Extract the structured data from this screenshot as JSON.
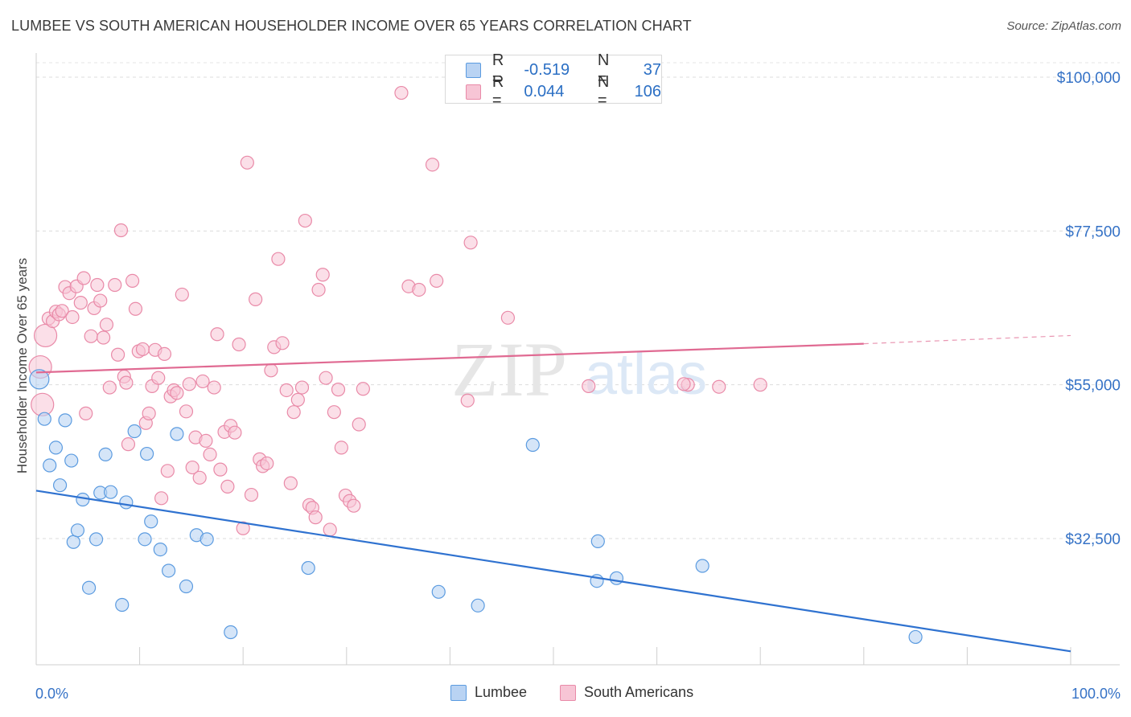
{
  "title": "LUMBEE VS SOUTH AMERICAN HOUSEHOLDER INCOME OVER 65 YEARS CORRELATION CHART",
  "source": "Source: ZipAtlas.com",
  "watermark": {
    "zip": "ZIP",
    "atlas": "atlas"
  },
  "legend_top": [
    {
      "r_label": "R =",
      "r_value": "-0.519",
      "n_label": "N =",
      "n_value": "37"
    },
    {
      "r_label": "R =",
      "r_value": "0.044",
      "n_label": "N =",
      "n_value": "106"
    }
  ],
  "chart_data": {
    "type": "scatter",
    "title": "LUMBEE VS SOUTH AMERICAN HOUSEHOLDER INCOME OVER 65 YEARS CORRELATION CHART",
    "xlabel": "",
    "ylabel": "Householder Income Over 65 years",
    "xlim": [
      0,
      100
    ],
    "ylim": [
      12000,
      102000
    ],
    "x_tick_labels": [
      "0.0%",
      "100.0%"
    ],
    "y_ticks": [
      32500,
      55000,
      77500,
      100000
    ],
    "y_tick_labels": [
      "$32,500",
      "$55,000",
      "$77,500",
      "$100,000"
    ],
    "grid": true,
    "legend": "bottom-center",
    "colors": {
      "lumbee": "#5b9be0",
      "lumbee_fill": "#b9d3f3",
      "lumbee_line": "#2f72d0",
      "south": "#e98aa8",
      "south_fill": "#f7c5d5",
      "south_line": "#e06a92",
      "axis_label": "#3572c6"
    },
    "series": [
      {
        "name": "Lumbee",
        "r": -0.519,
        "n": 37,
        "trend": {
          "x": [
            0,
            100
          ],
          "y": [
            39500,
            16000
          ]
        },
        "points": [
          [
            0.3,
            55800
          ],
          [
            0.8,
            50000
          ],
          [
            1.3,
            43200
          ],
          [
            1.9,
            45800
          ],
          [
            2.3,
            40300
          ],
          [
            2.8,
            49800
          ],
          [
            3.4,
            43900
          ],
          [
            3.6,
            32000
          ],
          [
            4.0,
            33700
          ],
          [
            4.5,
            38200
          ],
          [
            5.1,
            25300
          ],
          [
            5.8,
            32400
          ],
          [
            6.2,
            39200
          ],
          [
            6.7,
            44800
          ],
          [
            7.2,
            39300
          ],
          [
            8.3,
            22800
          ],
          [
            8.7,
            37800
          ],
          [
            9.5,
            48200
          ],
          [
            10.5,
            32400
          ],
          [
            10.7,
            44900
          ],
          [
            11.1,
            35000
          ],
          [
            12.0,
            30900
          ],
          [
            12.8,
            27800
          ],
          [
            13.6,
            47800
          ],
          [
            14.5,
            25500
          ],
          [
            15.5,
            33000
          ],
          [
            16.5,
            32400
          ],
          [
            18.8,
            18800
          ],
          [
            26.3,
            28200
          ],
          [
            38.9,
            24700
          ],
          [
            42.7,
            22700
          ],
          [
            48.0,
            46200
          ],
          [
            54.3,
            32100
          ],
          [
            54.2,
            26300
          ],
          [
            56.1,
            26700
          ],
          [
            64.4,
            28500
          ],
          [
            85.0,
            18100
          ]
        ]
      },
      {
        "name": "South Americans",
        "r": 0.044,
        "n": 106,
        "trend": {
          "x": [
            0,
            80
          ],
          "y": [
            56800,
            61000
          ]
        },
        "trend_dashed": {
          "x": [
            80,
            100
          ],
          "y": [
            61000,
            62200
          ]
        },
        "points": [
          [
            0.4,
            57600
          ],
          [
            0.6,
            52100
          ],
          [
            0.9,
            62200
          ],
          [
            1.2,
            64700
          ],
          [
            1.6,
            64300
          ],
          [
            1.9,
            65700
          ],
          [
            2.2,
            65300
          ],
          [
            2.5,
            65800
          ],
          [
            2.8,
            69300
          ],
          [
            3.2,
            68400
          ],
          [
            3.5,
            64900
          ],
          [
            3.9,
            69400
          ],
          [
            4.3,
            67000
          ],
          [
            4.6,
            70600
          ],
          [
            4.8,
            50800
          ],
          [
            5.3,
            62100
          ],
          [
            5.6,
            66200
          ],
          [
            5.9,
            69600
          ],
          [
            6.2,
            67300
          ],
          [
            6.5,
            61900
          ],
          [
            6.8,
            63800
          ],
          [
            7.1,
            54600
          ],
          [
            7.6,
            69600
          ],
          [
            7.9,
            59400
          ],
          [
            8.2,
            77600
          ],
          [
            8.5,
            56200
          ],
          [
            8.7,
            55300
          ],
          [
            8.9,
            46300
          ],
          [
            9.3,
            70200
          ],
          [
            9.6,
            66100
          ],
          [
            9.9,
            59900
          ],
          [
            10.3,
            60200
          ],
          [
            10.6,
            49400
          ],
          [
            10.9,
            50800
          ],
          [
            11.2,
            54800
          ],
          [
            11.5,
            60100
          ],
          [
            11.8,
            56000
          ],
          [
            12.1,
            38400
          ],
          [
            12.4,
            59500
          ],
          [
            12.7,
            42400
          ],
          [
            13.0,
            53300
          ],
          [
            13.3,
            54200
          ],
          [
            13.6,
            53800
          ],
          [
            14.1,
            68200
          ],
          [
            14.5,
            51100
          ],
          [
            14.8,
            55100
          ],
          [
            15.1,
            42900
          ],
          [
            15.4,
            47300
          ],
          [
            15.8,
            41400
          ],
          [
            16.1,
            55500
          ],
          [
            16.4,
            46800
          ],
          [
            16.8,
            44800
          ],
          [
            17.2,
            54600
          ],
          [
            17.5,
            62400
          ],
          [
            17.8,
            42600
          ],
          [
            18.2,
            48100
          ],
          [
            18.5,
            40100
          ],
          [
            18.8,
            49000
          ],
          [
            19.2,
            48000
          ],
          [
            19.6,
            60900
          ],
          [
            20.0,
            34000
          ],
          [
            20.4,
            87500
          ],
          [
            20.8,
            38900
          ],
          [
            21.2,
            67500
          ],
          [
            21.6,
            44100
          ],
          [
            21.9,
            43100
          ],
          [
            22.3,
            43500
          ],
          [
            22.7,
            57100
          ],
          [
            23.0,
            60500
          ],
          [
            23.4,
            73400
          ],
          [
            23.8,
            61100
          ],
          [
            24.2,
            54200
          ],
          [
            24.6,
            40600
          ],
          [
            24.9,
            51000
          ],
          [
            25.3,
            52800
          ],
          [
            25.7,
            54600
          ],
          [
            26.0,
            79000
          ],
          [
            26.4,
            37400
          ],
          [
            26.7,
            37000
          ],
          [
            27.0,
            35600
          ],
          [
            27.3,
            68900
          ],
          [
            27.7,
            71100
          ],
          [
            28.0,
            56000
          ],
          [
            28.4,
            33800
          ],
          [
            28.8,
            51000
          ],
          [
            29.2,
            54300
          ],
          [
            29.5,
            45800
          ],
          [
            29.9,
            38800
          ],
          [
            30.3,
            38000
          ],
          [
            30.7,
            37300
          ],
          [
            31.2,
            49200
          ],
          [
            31.6,
            54400
          ],
          [
            35.3,
            97700
          ],
          [
            36.0,
            69400
          ],
          [
            37.0,
            68900
          ],
          [
            38.3,
            87200
          ],
          [
            38.7,
            70200
          ],
          [
            40.2,
            101000
          ],
          [
            41.7,
            52700
          ],
          [
            42.0,
            75800
          ],
          [
            45.6,
            64800
          ],
          [
            53.4,
            54800
          ],
          [
            63.0,
            55000
          ],
          [
            62.6,
            55100
          ],
          [
            66.0,
            54700
          ],
          [
            70.0,
            55000
          ]
        ]
      }
    ]
  },
  "legend_bottom": [
    {
      "label": "Lumbee"
    },
    {
      "label": "South Americans"
    }
  ]
}
